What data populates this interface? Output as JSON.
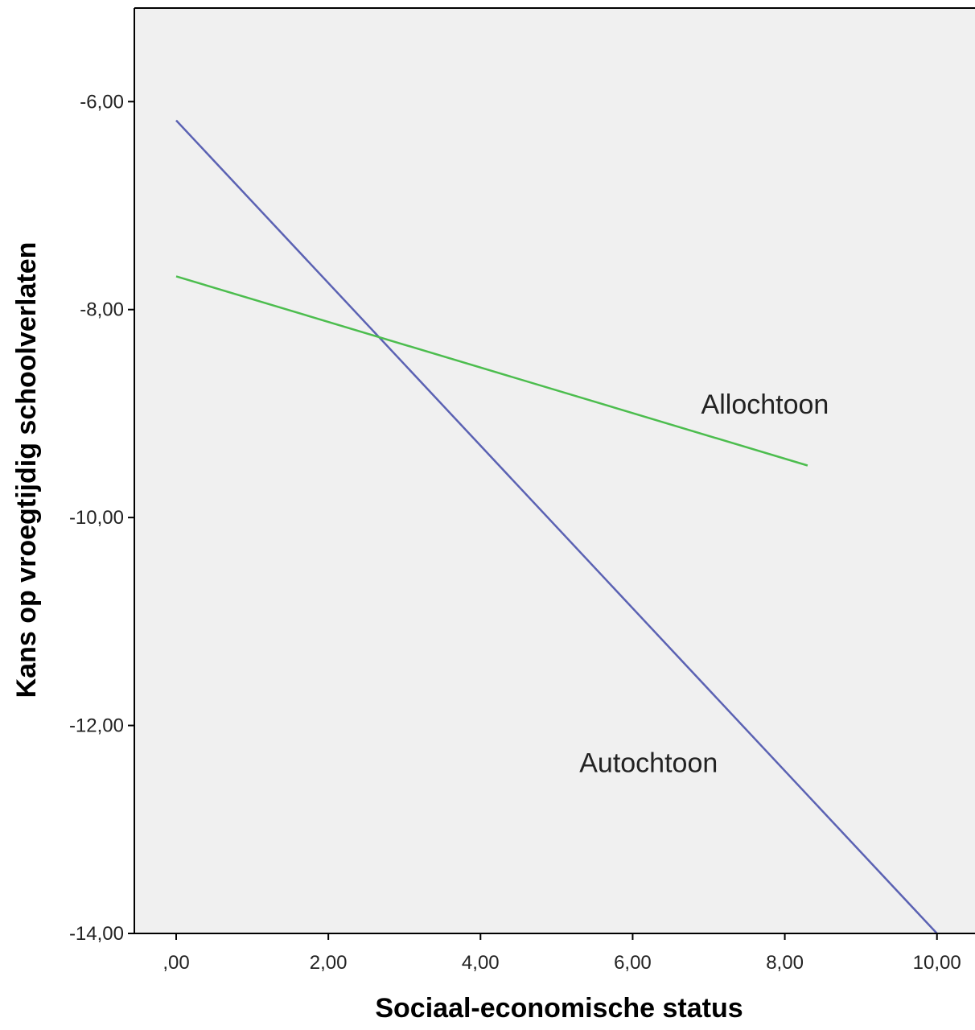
{
  "chart_data": {
    "type": "line",
    "title": "",
    "xlabel": "Sociaal-economische status",
    "ylabel": "Kans op vroegtijdig schoolverlaten",
    "xlim": [
      -0.55,
      10.5
    ],
    "ylim": [
      -14.0,
      -5.1
    ],
    "x_ticks": [
      {
        "value": 0,
        "label": ",00"
      },
      {
        "value": 2,
        "label": "2,00"
      },
      {
        "value": 4,
        "label": "4,00"
      },
      {
        "value": 6,
        "label": "6,00"
      },
      {
        "value": 8,
        "label": "8,00"
      },
      {
        "value": 10,
        "label": "10,00"
      }
    ],
    "y_ticks": [
      {
        "value": -6,
        "label": "-6,00"
      },
      {
        "value": -8,
        "label": "-8,00"
      },
      {
        "value": -10,
        "label": "-10,00"
      },
      {
        "value": -12,
        "label": "-12,00"
      },
      {
        "value": -14,
        "label": "-14,00"
      }
    ],
    "series": [
      {
        "name": "Autochtoon",
        "color": "#5b62b3",
        "x": [
          0,
          10
        ],
        "y": [
          -6.18,
          -14.0
        ]
      },
      {
        "name": "Allochtoon",
        "color": "#4cbd4e",
        "x": [
          0,
          8.3
        ],
        "y": [
          -7.68,
          -9.5
        ]
      }
    ],
    "annotations": [
      {
        "text": "Allochtoon",
        "x": 6.9,
        "y": -9.0
      },
      {
        "text": "Autochtoon",
        "x": 5.3,
        "y": -12.45
      }
    ],
    "grid": false,
    "legend": "none",
    "plot_background": "#f0f0f0"
  }
}
